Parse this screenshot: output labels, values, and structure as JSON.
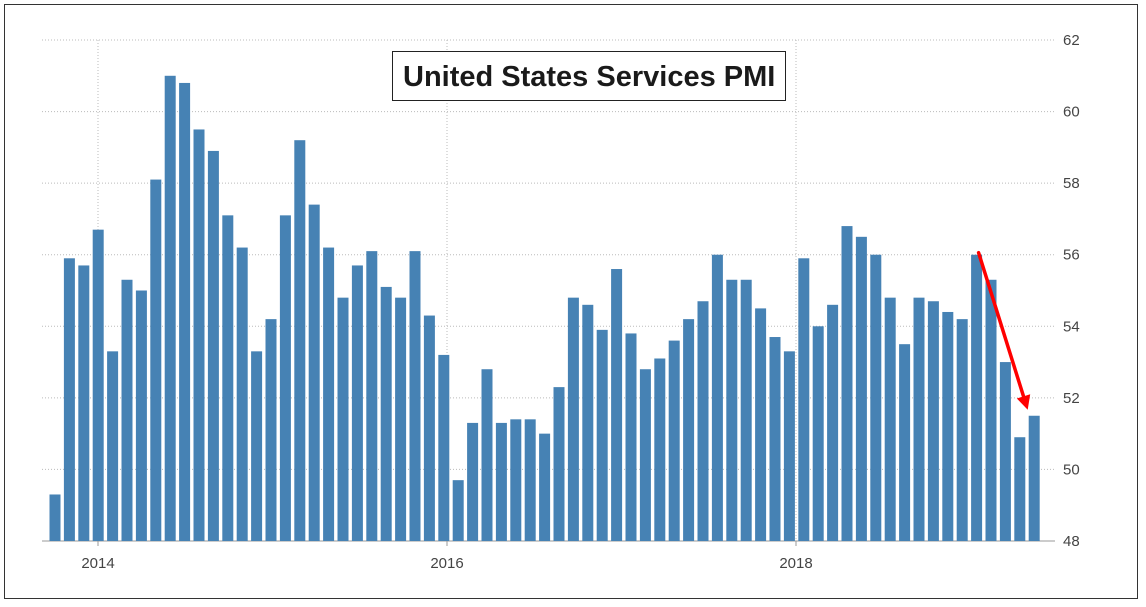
{
  "chart_data": {
    "type": "bar",
    "title": "United States Services PMI",
    "xlabel": "",
    "ylabel": "",
    "ylim": [
      48,
      62
    ],
    "y_ticks": [
      48,
      50,
      52,
      54,
      56,
      58,
      60,
      62
    ],
    "x_tick_labels": [
      "2014",
      "2016",
      "2018"
    ],
    "grid": true,
    "y_axis_position": "right",
    "bar_color": "#4682b4",
    "annotation": {
      "type": "arrow",
      "color": "#ff0000",
      "from_value": 56.0,
      "to_value": 51.5
    },
    "series": [
      {
        "values": [
          49.3,
          55.9,
          55.7,
          56.7,
          53.3,
          55.3,
          55.0,
          58.1,
          61.0,
          60.8,
          59.5,
          58.9,
          57.1,
          56.2,
          53.3,
          54.2,
          57.1,
          59.2,
          57.4,
          56.2,
          54.8,
          55.7,
          56.1,
          55.1,
          54.8,
          56.1,
          54.3,
          53.2,
          49.7,
          51.3,
          52.8,
          51.3,
          51.4,
          51.4,
          51.0,
          52.3,
          54.8,
          54.6,
          53.9,
          55.6,
          53.8,
          52.8,
          53.1,
          53.6,
          54.2,
          54.7,
          56.0,
          55.3,
          55.3,
          54.5,
          53.7,
          53.3,
          55.9,
          54.0,
          54.6,
          56.8,
          56.5,
          56.0,
          54.8,
          53.5,
          54.8,
          54.7,
          54.4,
          54.2,
          56.0,
          55.3,
          53.0,
          50.9,
          51.5
        ]
      }
    ]
  }
}
